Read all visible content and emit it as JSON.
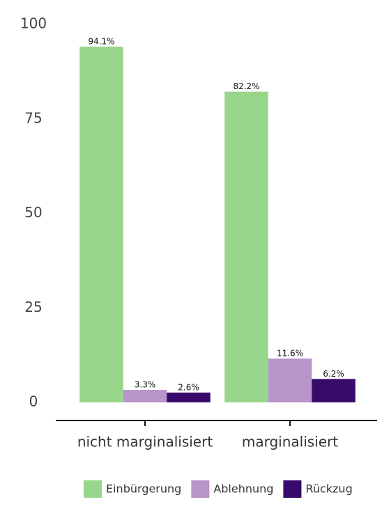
{
  "chart_data": {
    "type": "bar",
    "categories": [
      "nicht marginalisiert",
      "marginalisiert"
    ],
    "series": [
      {
        "name": "Einbürgerung",
        "color": "#98d68c",
        "values": [
          94.1,
          82.2
        ],
        "value_labels": [
          "94.1%",
          "82.2%"
        ]
      },
      {
        "name": "Ablehnung",
        "color": "#b794c9",
        "values": [
          3.3,
          11.6
        ],
        "value_labels": [
          "3.3%",
          "11.6%"
        ]
      },
      {
        "name": "Rückzug",
        "color": "#370a6b",
        "values": [
          2.6,
          6.2
        ],
        "value_labels": [
          "2.6%",
          "6.2%"
        ]
      }
    ],
    "ylim": [
      0,
      100
    ],
    "yticks": [
      0,
      25,
      50,
      75,
      100
    ],
    "grid": false,
    "legend": "bottom"
  }
}
